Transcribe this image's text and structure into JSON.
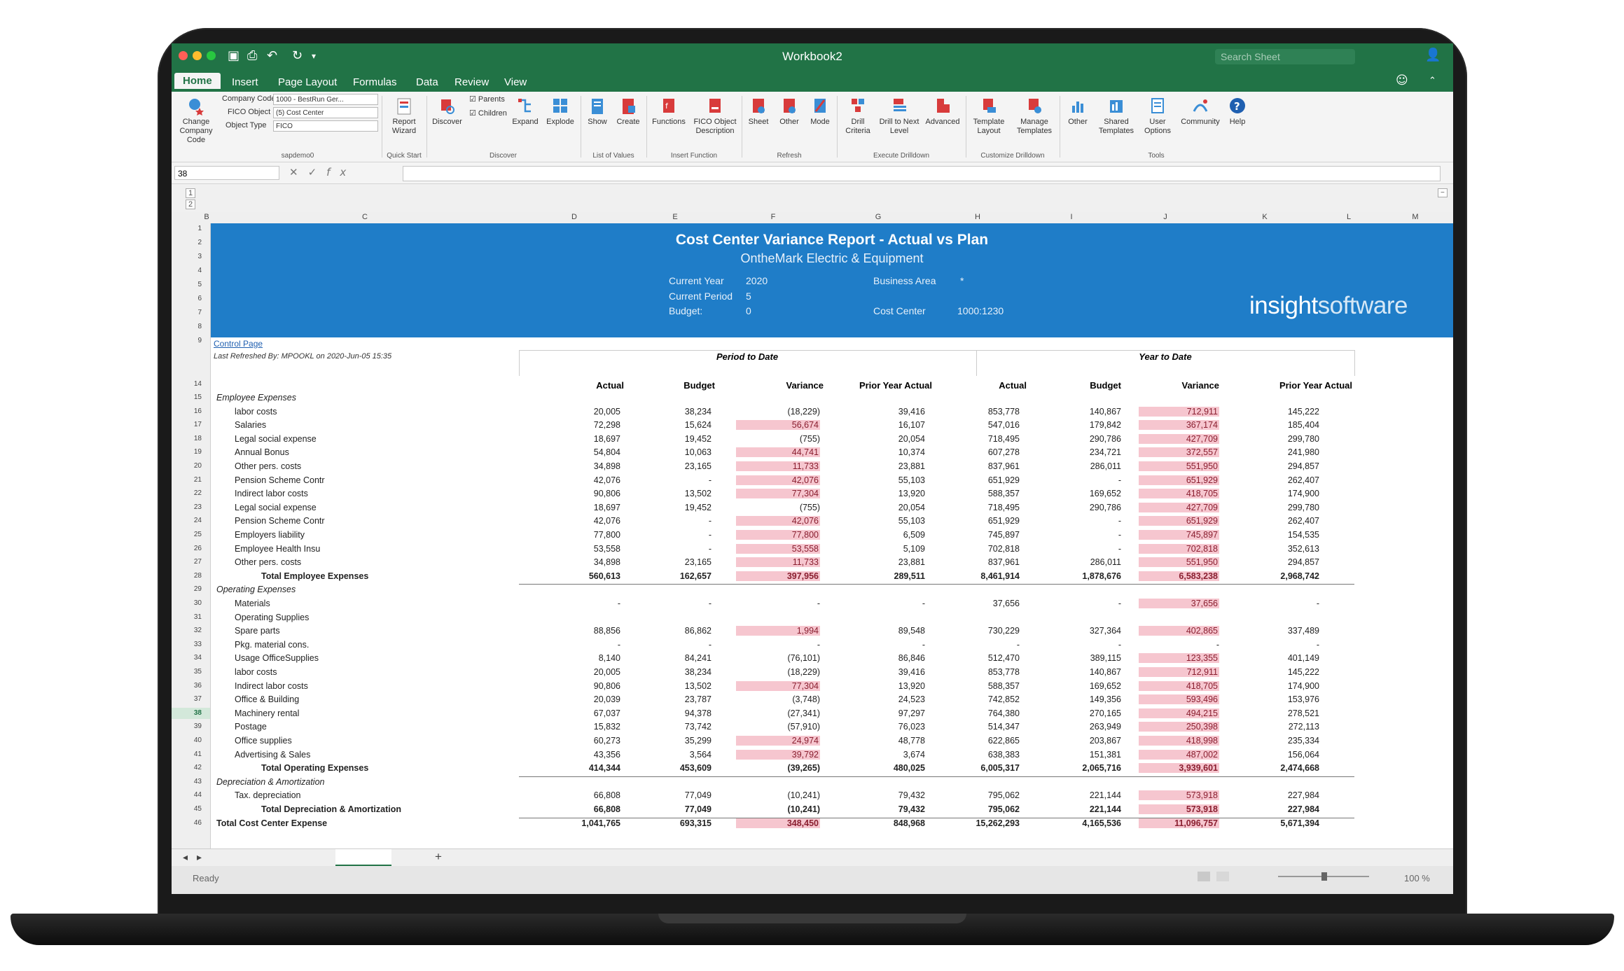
{
  "window": {
    "title": "Workbook2",
    "search_placeholder": "Search Sheet"
  },
  "tabs": [
    "Home",
    "Insert",
    "Page Layout",
    "Formulas",
    "Data",
    "Review",
    "View"
  ],
  "ribbon": {
    "change_company_label": "Change Company Code",
    "company_code_label": "Company Code",
    "company_code_value": "1000 - BestRun Ger...",
    "fico_object_label": "FICO Object",
    "fico_object_value": "(5) Cost Center",
    "object_type_label": "Object Type",
    "object_type_value": "FICO",
    "group_sapdemo": "sapdemo0",
    "report_wizard": "Report Wizard",
    "group_quick_start": "Quick Start",
    "discover": "Discover",
    "parents": "Parents",
    "children": "Children",
    "expand": "Expand",
    "explode": "Explode",
    "group_discover": "Discover",
    "show": "Show",
    "create": "Create",
    "group_list_values": "List of Values",
    "functions": "Functions",
    "fico_object_description": "FICO Object Description",
    "group_insert_function": "Insert Function",
    "sheet": "Sheet",
    "other": "Other",
    "mode": "Mode",
    "group_refresh": "Refresh",
    "drill_criteria": "Drill Criteria",
    "drill_next_level": "Drill to Next Level",
    "advanced": "Advanced",
    "group_execute_drilldown": "Execute Drilldown",
    "template_layout": "Template Layout",
    "manage_templates": "Manage Templates",
    "group_customize_drilldown": "Customize Drilldown",
    "other2": "Other",
    "shared_templates": "Shared Templates",
    "user_options": "User Options",
    "community": "Community",
    "help": "Help",
    "group_tools": "Tools"
  },
  "formula_bar": {
    "name_box": "38"
  },
  "columns": [
    "B",
    "C",
    "D",
    "E",
    "F",
    "G",
    "H",
    "I",
    "J",
    "K",
    "L",
    "M"
  ],
  "report": {
    "title": "Cost Center Variance Report - Actual vs Plan",
    "subtitle": "OntheMark Electric & Equipment",
    "current_year_label": "Current Year",
    "current_year_value": "2020",
    "current_period_label": "Current Period",
    "current_period_value": "5",
    "budget_label": "Budget:",
    "budget_value": "0",
    "business_area_label": "Business Area",
    "business_area_value": "*",
    "cost_center_label": "Cost Center",
    "cost_center_value": "1000:1230",
    "logo_a": "insight",
    "logo_b": "software",
    "control_page_link": "Control Page",
    "last_refreshed": "Last Refreshed By: MPOOKL on 2020-Jun-05 15:35",
    "period_to_date": "Period to Date",
    "year_to_date": "Year to Date",
    "col_heads": [
      "Actual",
      "Budget",
      "Variance",
      "Prior Year Actual",
      "Actual",
      "Budget",
      "Variance",
      "Prior Year Actual"
    ]
  },
  "rows": [
    {
      "n": "15",
      "label": "Employee Expenses",
      "indent": 0,
      "italic": true,
      "vals": [
        "",
        "",
        "",
        "",
        "",
        "",
        "",
        ""
      ]
    },
    {
      "n": "16",
      "label": "labor costs",
      "indent": 1,
      "vals": [
        "20,005",
        "38,234",
        "(18,229)",
        "39,416",
        "853,778",
        "140,867",
        "712,911",
        "145,222"
      ],
      "hl": [
        6
      ]
    },
    {
      "n": "17",
      "label": "Salaries",
      "indent": 1,
      "vals": [
        "72,298",
        "15,624",
        "56,674",
        "16,107",
        "547,016",
        "179,842",
        "367,174",
        "185,404"
      ],
      "hl": [
        2,
        6
      ]
    },
    {
      "n": "18",
      "label": "Legal social expense",
      "indent": 1,
      "vals": [
        "18,697",
        "19,452",
        "(755)",
        "20,054",
        "718,495",
        "290,786",
        "427,709",
        "299,780"
      ],
      "hl": [
        6
      ]
    },
    {
      "n": "19",
      "label": "Annual Bonus",
      "indent": 1,
      "vals": [
        "54,804",
        "10,063",
        "44,741",
        "10,374",
        "607,278",
        "234,721",
        "372,557",
        "241,980"
      ],
      "hl": [
        2,
        6
      ]
    },
    {
      "n": "20",
      "label": "Other pers. costs",
      "indent": 1,
      "vals": [
        "34,898",
        "23,165",
        "11,733",
        "23,881",
        "837,961",
        "286,011",
        "551,950",
        "294,857"
      ],
      "hl": [
        2,
        6
      ]
    },
    {
      "n": "21",
      "label": "Pension Scheme Contr",
      "indent": 1,
      "vals": [
        "42,076",
        "-",
        "42,076",
        "55,103",
        "651,929",
        "-",
        "651,929",
        "262,407"
      ],
      "hl": [
        2,
        6
      ]
    },
    {
      "n": "22",
      "label": "Indirect labor costs",
      "indent": 1,
      "vals": [
        "90,806",
        "13,502",
        "77,304",
        "13,920",
        "588,357",
        "169,652",
        "418,705",
        "174,900"
      ],
      "hl": [
        2,
        6
      ]
    },
    {
      "n": "23",
      "label": "Legal social expense",
      "indent": 1,
      "vals": [
        "18,697",
        "19,452",
        "(755)",
        "20,054",
        "718,495",
        "290,786",
        "427,709",
        "299,780"
      ],
      "hl": [
        6
      ]
    },
    {
      "n": "24",
      "label": "Pension Scheme Contr",
      "indent": 1,
      "vals": [
        "42,076",
        "-",
        "42,076",
        "55,103",
        "651,929",
        "-",
        "651,929",
        "262,407"
      ],
      "hl": [
        2,
        6
      ]
    },
    {
      "n": "25",
      "label": "Employers liability",
      "indent": 1,
      "vals": [
        "77,800",
        "-",
        "77,800",
        "6,509",
        "745,897",
        "-",
        "745,897",
        "154,535"
      ],
      "hl": [
        2,
        6
      ]
    },
    {
      "n": "26",
      "label": "Employee Health Insu",
      "indent": 1,
      "vals": [
        "53,558",
        "-",
        "53,558",
        "5,109",
        "702,818",
        "-",
        "702,818",
        "352,613"
      ],
      "hl": [
        2,
        6
      ]
    },
    {
      "n": "27",
      "label": "Other pers. costs",
      "indent": 1,
      "vals": [
        "34,898",
        "23,165",
        "11,733",
        "23,881",
        "837,961",
        "286,011",
        "551,950",
        "294,857"
      ],
      "hl": [
        2,
        6
      ]
    },
    {
      "n": "28",
      "label": "Total Employee Expenses",
      "indent": 2,
      "total": true,
      "vals": [
        "560,613",
        "162,657",
        "397,956",
        "289,511",
        "8,461,914",
        "1,878,676",
        "6,583,238",
        "2,968,742"
      ],
      "hl": [
        2,
        6
      ]
    },
    {
      "n": "29",
      "label": "Operating Expenses",
      "indent": 0,
      "italic": true,
      "vals": [
        "",
        "",
        "",
        "",
        "",
        "",
        "",
        ""
      ]
    },
    {
      "n": "30",
      "label": "Materials",
      "indent": 1,
      "vals": [
        "-",
        "-",
        "-",
        "-",
        "37,656",
        "-",
        "37,656",
        "-"
      ],
      "hl": [
        6
      ]
    },
    {
      "n": "31",
      "label": "Operating Supplies",
      "indent": 1,
      "vals": [
        "",
        "",
        "",
        "",
        "",
        "",
        "",
        ""
      ]
    },
    {
      "n": "32",
      "label": "Spare parts",
      "indent": 1,
      "vals": [
        "88,856",
        "86,862",
        "1,994",
        "89,548",
        "730,229",
        "327,364",
        "402,865",
        "337,489"
      ],
      "hl": [
        2,
        6
      ]
    },
    {
      "n": "33",
      "label": "Pkg. material cons.",
      "indent": 1,
      "vals": [
        "-",
        "-",
        "-",
        "-",
        "-",
        "-",
        "-",
        "-"
      ]
    },
    {
      "n": "34",
      "label": "Usage OfficeSupplies",
      "indent": 1,
      "vals": [
        "8,140",
        "84,241",
        "(76,101)",
        "86,846",
        "512,470",
        "389,115",
        "123,355",
        "401,149"
      ],
      "hl": [
        6
      ]
    },
    {
      "n": "35",
      "label": "labor costs",
      "indent": 1,
      "vals": [
        "20,005",
        "38,234",
        "(18,229)",
        "39,416",
        "853,778",
        "140,867",
        "712,911",
        "145,222"
      ],
      "hl": [
        6
      ]
    },
    {
      "n": "36",
      "label": "Indirect labor costs",
      "indent": 1,
      "vals": [
        "90,806",
        "13,502",
        "77,304",
        "13,920",
        "588,357",
        "169,652",
        "418,705",
        "174,900"
      ],
      "hl": [
        2,
        6
      ]
    },
    {
      "n": "37",
      "label": "Office & Building",
      "indent": 1,
      "vals": [
        "20,039",
        "23,787",
        "(3,748)",
        "24,523",
        "742,852",
        "149,356",
        "593,496",
        "153,976"
      ],
      "hl": [
        6
      ]
    },
    {
      "n": "38",
      "label": "Machinery rental",
      "indent": 1,
      "vals": [
        "67,037",
        "94,378",
        "(27,341)",
        "97,297",
        "764,380",
        "270,165",
        "494,215",
        "278,521"
      ],
      "hl": [
        6
      ],
      "sel": true
    },
    {
      "n": "39",
      "label": "Postage",
      "indent": 1,
      "vals": [
        "15,832",
        "73,742",
        "(57,910)",
        "76,023",
        "514,347",
        "263,949",
        "250,398",
        "272,113"
      ],
      "hl": [
        6
      ]
    },
    {
      "n": "40",
      "label": "Office supplies",
      "indent": 1,
      "vals": [
        "60,273",
        "35,299",
        "24,974",
        "48,778",
        "622,865",
        "203,867",
        "418,998",
        "235,334"
      ],
      "hl": [
        2,
        6
      ]
    },
    {
      "n": "41",
      "label": "Advertising & Sales",
      "indent": 1,
      "vals": [
        "43,356",
        "3,564",
        "39,792",
        "3,674",
        "638,383",
        "151,381",
        "487,002",
        "156,064"
      ],
      "hl": [
        2,
        6
      ]
    },
    {
      "n": "42",
      "label": "Total Operating Expenses",
      "indent": 2,
      "total": true,
      "vals": [
        "414,344",
        "453,609",
        "(39,265)",
        "480,025",
        "6,005,317",
        "2,065,716",
        "3,939,601",
        "2,474,668"
      ],
      "hl": [
        6
      ]
    },
    {
      "n": "43",
      "label": "Depreciation & Amortization",
      "indent": 0,
      "italic": true,
      "vals": [
        "",
        "",
        "",
        "",
        "",
        "",
        "",
        ""
      ]
    },
    {
      "n": "44",
      "label": "Tax. depreciation",
      "indent": 1,
      "vals": [
        "66,808",
        "77,049",
        "(10,241)",
        "79,432",
        "795,062",
        "221,144",
        "573,918",
        "227,984"
      ],
      "hl": [
        6
      ]
    },
    {
      "n": "45",
      "label": "Total Depreciation & Amortization",
      "indent": 2,
      "total": true,
      "vals": [
        "66,808",
        "77,049",
        "(10,241)",
        "79,432",
        "795,062",
        "221,144",
        "573,918",
        "227,984"
      ],
      "hl": [
        6
      ]
    },
    {
      "n": "46",
      "label": "Total Cost Center Expense",
      "indent": 0,
      "grand": true,
      "vals": [
        "1,041,765",
        "693,315",
        "348,450",
        "848,968",
        "15,262,293",
        "4,165,536",
        "11,096,757",
        "5,671,394"
      ],
      "hl": [
        2,
        6
      ]
    }
  ],
  "status": {
    "ready": "Ready",
    "zoom": "100 %"
  },
  "colors": {
    "excel_green": "#217346",
    "banner_blue": "#1f7dc8",
    "variance_pink": "#f6c6cf"
  }
}
